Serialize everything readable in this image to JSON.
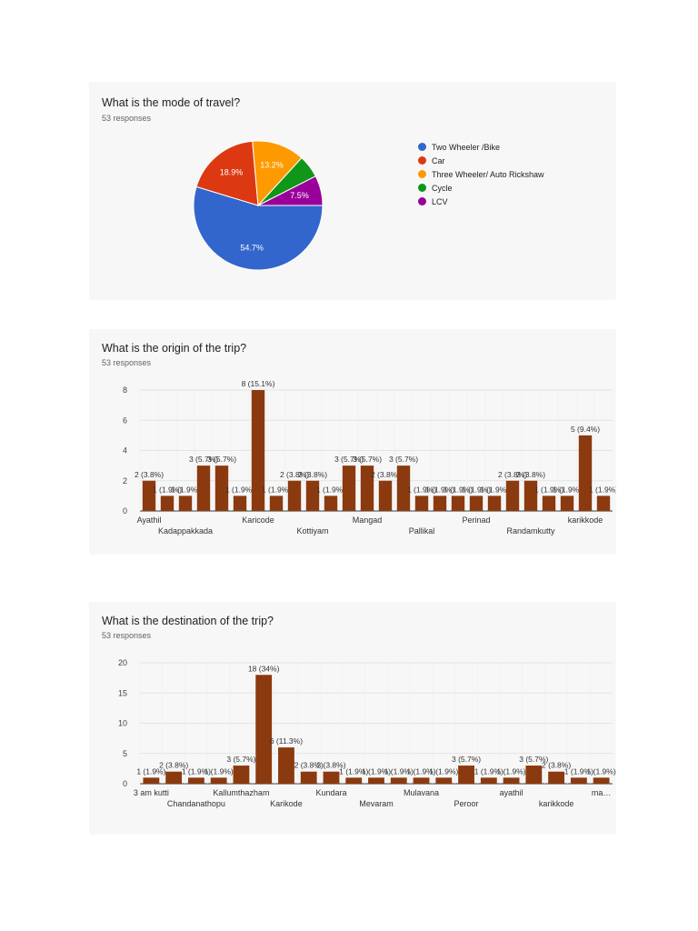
{
  "chart_data": [
    {
      "type": "pie",
      "title": "What is the mode of travel?",
      "subtitle": "53 responses",
      "legend_position": "right",
      "slices": [
        {
          "label": "Two Wheeler /Bike",
          "value": 54.7,
          "display": "54.7%",
          "color": "#3366cc"
        },
        {
          "label": "Car",
          "value": 18.9,
          "display": "18.9%",
          "color": "#dc3912"
        },
        {
          "label": "Three Wheeler/ Auto Rickshaw",
          "value": 13.2,
          "display": "13.2%",
          "color": "#ff9900"
        },
        {
          "label": "Cycle",
          "value": 5.7,
          "display": "",
          "color": "#109618"
        },
        {
          "label": "LCV",
          "value": 7.5,
          "display": "7.5%",
          "color": "#990099"
        }
      ]
    },
    {
      "type": "bar",
      "title": "What is the origin of the trip?",
      "subtitle": "53 responses",
      "ylim": [
        0,
        8
      ],
      "yticks": [
        0,
        2,
        4,
        6,
        8
      ],
      "grid": true,
      "bar_color": "#8b3a0f",
      "x_tick_labels": [
        {
          "index": 0,
          "text": "Ayathil"
        },
        {
          "index": 2,
          "text": "Kadappakkada"
        },
        {
          "index": 6,
          "text": "Karicode"
        },
        {
          "index": 9,
          "text": "Kottiyam"
        },
        {
          "index": 12,
          "text": "Mangad"
        },
        {
          "index": 15,
          "text": "Pallikal"
        },
        {
          "index": 18,
          "text": "Perinad"
        },
        {
          "index": 21,
          "text": "Randamkutty"
        },
        {
          "index": 24,
          "text": "karikkode"
        }
      ],
      "values": [
        2,
        1,
        1,
        3,
        3,
        1,
        8,
        1,
        2,
        2,
        1,
        3,
        3,
        2,
        3,
        1,
        1,
        1,
        1,
        1,
        2,
        2,
        1,
        1,
        5,
        1
      ],
      "data_labels": [
        "2 (3.8%)",
        "1 (1.9%)",
        "1 (1.9%)",
        "3 (5.7%)",
        "3 (5.7%)",
        "1 (1.9%)",
        "8 (15.1%)",
        "1 (1.9%)",
        "2 (3.8%)",
        "2 (3.8%)",
        "1 (1.9%)",
        "3 (5.7%)",
        "3 (5.7%)",
        "2 (3.8%)",
        "3 (5.7%)",
        "1 (1.9%)",
        "1 (1.9%)",
        "1 (1.9%)",
        "1 (1.9%)",
        "1 (1.9%)",
        "2 (3.8%)",
        "2 (3.8%)",
        "1 (1.9%)",
        "1 (1.9%)",
        "5 (9.4%)",
        "1 (1.9%)"
      ]
    },
    {
      "type": "bar",
      "title": "What is the destination of the trip?",
      "subtitle": "53 responses",
      "ylim": [
        0,
        20
      ],
      "yticks": [
        0,
        5,
        10,
        15,
        20
      ],
      "grid": true,
      "bar_color": "#8b3a0f",
      "x_tick_labels": [
        {
          "index": 0,
          "text": "3 am kutti"
        },
        {
          "index": 2,
          "text": "Chandanathopu"
        },
        {
          "index": 4,
          "text": "Kallumthazham"
        },
        {
          "index": 6,
          "text": "Karikode"
        },
        {
          "index": 8,
          "text": "Kundara"
        },
        {
          "index": 10,
          "text": "Mevaram"
        },
        {
          "index": 12,
          "text": "Mulavana"
        },
        {
          "index": 14,
          "text": "Peroor"
        },
        {
          "index": 16,
          "text": "ayathil"
        },
        {
          "index": 18,
          "text": "karikkode"
        },
        {
          "index": 20,
          "text": "ma…"
        }
      ],
      "values": [
        1,
        2,
        1,
        1,
        3,
        18,
        6,
        2,
        2,
        1,
        1,
        1,
        1,
        1,
        3,
        1,
        1,
        3,
        2,
        1,
        1
      ],
      "data_labels": [
        "1 (1.9%)",
        "2 (3.8%)",
        "1 (1.9%)",
        "1 (1.9%)",
        "3 (5.7%)",
        "18 (34%)",
        "6 (11.3%)",
        "2 (3.8%)",
        "2 (3.8%)",
        "1 (1.9%)",
        "1 (1.9%)",
        "1 (1.9%)",
        "1 (1.9%)",
        "1 (1.9%)",
        "3 (5.7%)",
        "1 (1.9%)",
        "1 (1.9%)",
        "3 (5.7%)",
        "2 (3.8%)",
        "1 (1.9%)",
        "1 (1.9%)"
      ]
    }
  ]
}
